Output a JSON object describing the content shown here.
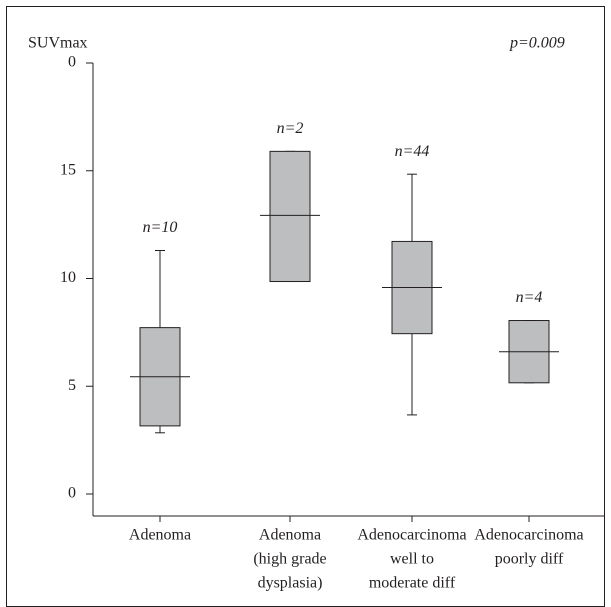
{
  "chart_data": {
    "type": "box",
    "y_label": "SUVmax",
    "annotation": "p=0.009",
    "categories": [
      [
        "Adenoma"
      ],
      [
        "Adenoma",
        "(high grade",
        "dysplasia)"
      ],
      [
        "Adenocarcinoma",
        "well to",
        "moderate diff"
      ],
      [
        "Adenocarcinoma",
        "poorly diff"
      ]
    ],
    "n_labels": [
      "n=10",
      "n=2",
      "n=44",
      "n=4"
    ],
    "min": [
      2.84,
      9.86,
      3.67,
      5.16
    ],
    "q1": [
      3.16,
      9.86,
      7.44,
      5.16
    ],
    "median": [
      5.44,
      12.93,
      9.58,
      6.6
    ],
    "q3": [
      7.72,
      15.9,
      11.72,
      8.05
    ],
    "max": [
      11.3,
      15.9,
      14.84,
      8.05
    ],
    "color": "#bcbec0",
    "ylim": [
      0,
      20
    ],
    "yticks": [
      0,
      5,
      10,
      15,
      {
        "value": 20,
        "label": "0"
      }
    ]
  }
}
